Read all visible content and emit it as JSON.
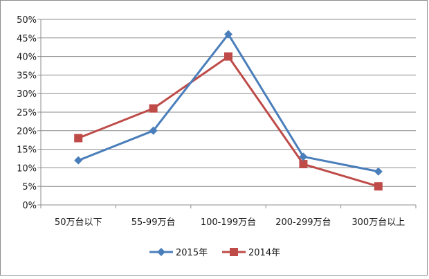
{
  "chart_data": {
    "type": "line",
    "categories": [
      "50万台以下",
      "55-99万台",
      "100-199万台",
      "200-299万台",
      "300万台以上"
    ],
    "series": [
      {
        "name": "2015年",
        "values": [
          12,
          20,
          46,
          13,
          9
        ],
        "color": "#4a7ebb",
        "marker": "diamond"
      },
      {
        "name": "2014年",
        "values": [
          18,
          26,
          40,
          11,
          5
        ],
        "color": "#be4b48",
        "marker": "square"
      }
    ],
    "yticks": [
      0,
      5,
      10,
      15,
      20,
      25,
      30,
      35,
      40,
      45,
      50
    ],
    "ytick_labels": [
      "0%",
      "5%",
      "10%",
      "15%",
      "20%",
      "25%",
      "30%",
      "35%",
      "40%",
      "45%",
      "50%"
    ],
    "ylim": [
      0,
      50
    ],
    "grid": true,
    "legend_position": "bottom",
    "title": "",
    "xlabel": "",
    "ylabel": ""
  }
}
